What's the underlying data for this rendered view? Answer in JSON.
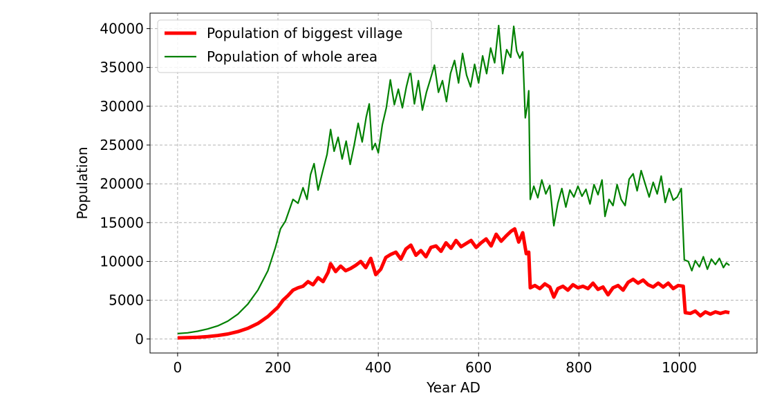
{
  "chart_data": {
    "type": "line",
    "xlabel": "Year AD",
    "ylabel": "Population",
    "xlim": [
      -55,
      1155
    ],
    "ylim": [
      -1800,
      42000
    ],
    "xticks": [
      0,
      200,
      400,
      600,
      800,
      1000
    ],
    "yticks": [
      0,
      5000,
      10000,
      15000,
      20000,
      25000,
      30000,
      35000,
      40000
    ],
    "grid": true,
    "legend": "top-left",
    "series": [
      {
        "name": "Population of biggest village",
        "color": "#ff0000",
        "points": [
          [
            0,
            150
          ],
          [
            20,
            180
          ],
          [
            40,
            230
          ],
          [
            60,
            320
          ],
          [
            80,
            450
          ],
          [
            100,
            650
          ],
          [
            120,
            950
          ],
          [
            140,
            1380
          ],
          [
            160,
            2000
          ],
          [
            180,
            2900
          ],
          [
            200,
            4100
          ],
          [
            210,
            5000
          ],
          [
            220,
            5600
          ],
          [
            230,
            6300
          ],
          [
            240,
            6600
          ],
          [
            250,
            6800
          ],
          [
            260,
            7400
          ],
          [
            270,
            7000
          ],
          [
            280,
            7900
          ],
          [
            290,
            7400
          ],
          [
            300,
            8600
          ],
          [
            305,
            9700
          ],
          [
            315,
            8700
          ],
          [
            325,
            9400
          ],
          [
            335,
            8800
          ],
          [
            345,
            9100
          ],
          [
            355,
            9500
          ],
          [
            365,
            10000
          ],
          [
            375,
            9200
          ],
          [
            385,
            10400
          ],
          [
            395,
            8300
          ],
          [
            405,
            9000
          ],
          [
            415,
            10500
          ],
          [
            425,
            10900
          ],
          [
            435,
            11200
          ],
          [
            445,
            10300
          ],
          [
            455,
            11600
          ],
          [
            465,
            12100
          ],
          [
            475,
            10800
          ],
          [
            485,
            11400
          ],
          [
            495,
            10600
          ],
          [
            505,
            11800
          ],
          [
            515,
            12000
          ],
          [
            525,
            11300
          ],
          [
            535,
            12400
          ],
          [
            545,
            11700
          ],
          [
            555,
            12700
          ],
          [
            565,
            11900
          ],
          [
            575,
            12300
          ],
          [
            585,
            12700
          ],
          [
            595,
            11800
          ],
          [
            605,
            12400
          ],
          [
            615,
            12900
          ],
          [
            625,
            12000
          ],
          [
            635,
            13500
          ],
          [
            645,
            12600
          ],
          [
            655,
            13300
          ],
          [
            665,
            13900
          ],
          [
            672,
            14200
          ],
          [
            680,
            12500
          ],
          [
            688,
            13700
          ],
          [
            695,
            11000
          ],
          [
            700,
            11200
          ],
          [
            703,
            6600
          ],
          [
            712,
            6900
          ],
          [
            722,
            6500
          ],
          [
            732,
            7100
          ],
          [
            742,
            6700
          ],
          [
            750,
            5400
          ],
          [
            758,
            6500
          ],
          [
            768,
            6800
          ],
          [
            778,
            6300
          ],
          [
            788,
            7000
          ],
          [
            798,
            6600
          ],
          [
            808,
            6800
          ],
          [
            818,
            6500
          ],
          [
            828,
            7200
          ],
          [
            838,
            6400
          ],
          [
            848,
            6700
          ],
          [
            858,
            5700
          ],
          [
            868,
            6600
          ],
          [
            878,
            6900
          ],
          [
            888,
            6300
          ],
          [
            898,
            7300
          ],
          [
            908,
            7700
          ],
          [
            918,
            7200
          ],
          [
            928,
            7600
          ],
          [
            938,
            7000
          ],
          [
            948,
            6700
          ],
          [
            958,
            7200
          ],
          [
            968,
            6700
          ],
          [
            978,
            7200
          ],
          [
            988,
            6500
          ],
          [
            998,
            6900
          ],
          [
            1008,
            6800
          ],
          [
            1012,
            3400
          ],
          [
            1022,
            3300
          ],
          [
            1032,
            3600
          ],
          [
            1042,
            3000
          ],
          [
            1052,
            3500
          ],
          [
            1062,
            3200
          ],
          [
            1072,
            3500
          ],
          [
            1082,
            3300
          ],
          [
            1092,
            3500
          ],
          [
            1100,
            3400
          ]
        ]
      },
      {
        "name": "Population of whole area",
        "color": "#008000",
        "points": [
          [
            0,
            700
          ],
          [
            20,
            800
          ],
          [
            40,
            1000
          ],
          [
            60,
            1300
          ],
          [
            80,
            1700
          ],
          [
            100,
            2300
          ],
          [
            120,
            3200
          ],
          [
            140,
            4500
          ],
          [
            160,
            6300
          ],
          [
            180,
            8800
          ],
          [
            195,
            11800
          ],
          [
            205,
            14200
          ],
          [
            215,
            15200
          ],
          [
            222,
            16500
          ],
          [
            230,
            18000
          ],
          [
            240,
            17500
          ],
          [
            250,
            19500
          ],
          [
            258,
            18000
          ],
          [
            265,
            21200
          ],
          [
            272,
            22600
          ],
          [
            280,
            19200
          ],
          [
            290,
            21800
          ],
          [
            298,
            23800
          ],
          [
            305,
            27000
          ],
          [
            312,
            24200
          ],
          [
            320,
            26000
          ],
          [
            328,
            23200
          ],
          [
            336,
            25500
          ],
          [
            344,
            22500
          ],
          [
            352,
            25000
          ],
          [
            360,
            27800
          ],
          [
            368,
            25400
          ],
          [
            376,
            28600
          ],
          [
            382,
            30300
          ],
          [
            388,
            24400
          ],
          [
            394,
            25200
          ],
          [
            400,
            24000
          ],
          [
            408,
            27600
          ],
          [
            416,
            29800
          ],
          [
            424,
            33400
          ],
          [
            432,
            30200
          ],
          [
            440,
            32200
          ],
          [
            448,
            29800
          ],
          [
            456,
            32500
          ],
          [
            464,
            34600
          ],
          [
            472,
            30300
          ],
          [
            480,
            33300
          ],
          [
            488,
            29500
          ],
          [
            496,
            31800
          ],
          [
            504,
            33500
          ],
          [
            512,
            35300
          ],
          [
            520,
            31800
          ],
          [
            528,
            33300
          ],
          [
            536,
            30600
          ],
          [
            544,
            34200
          ],
          [
            552,
            35900
          ],
          [
            560,
            33000
          ],
          [
            568,
            36800
          ],
          [
            576,
            34000
          ],
          [
            584,
            32500
          ],
          [
            592,
            35400
          ],
          [
            600,
            33000
          ],
          [
            608,
            36500
          ],
          [
            616,
            34200
          ],
          [
            624,
            37500
          ],
          [
            632,
            35600
          ],
          [
            640,
            40400
          ],
          [
            648,
            34200
          ],
          [
            656,
            37300
          ],
          [
            664,
            36300
          ],
          [
            670,
            40300
          ],
          [
            676,
            37100
          ],
          [
            682,
            36200
          ],
          [
            688,
            37000
          ],
          [
            693,
            28500
          ],
          [
            697,
            30000
          ],
          [
            700,
            32000
          ],
          [
            703,
            18000
          ],
          [
            710,
            19700
          ],
          [
            718,
            18200
          ],
          [
            726,
            20500
          ],
          [
            734,
            18700
          ],
          [
            742,
            19800
          ],
          [
            750,
            14600
          ],
          [
            758,
            17500
          ],
          [
            766,
            19400
          ],
          [
            774,
            17000
          ],
          [
            782,
            19200
          ],
          [
            790,
            18300
          ],
          [
            798,
            19700
          ],
          [
            806,
            18400
          ],
          [
            814,
            19300
          ],
          [
            822,
            17400
          ],
          [
            830,
            19900
          ],
          [
            838,
            18600
          ],
          [
            846,
            20500
          ],
          [
            852,
            15800
          ],
          [
            860,
            18000
          ],
          [
            868,
            17200
          ],
          [
            876,
            19900
          ],
          [
            884,
            18000
          ],
          [
            892,
            17200
          ],
          [
            900,
            20600
          ],
          [
            908,
            21300
          ],
          [
            916,
            19100
          ],
          [
            924,
            21700
          ],
          [
            932,
            20000
          ],
          [
            940,
            18300
          ],
          [
            948,
            20200
          ],
          [
            956,
            18700
          ],
          [
            964,
            21000
          ],
          [
            972,
            17600
          ],
          [
            980,
            19400
          ],
          [
            988,
            17900
          ],
          [
            996,
            18300
          ],
          [
            1004,
            19400
          ],
          [
            1010,
            10200
          ],
          [
            1018,
            10000
          ],
          [
            1025,
            8800
          ],
          [
            1032,
            10100
          ],
          [
            1040,
            9300
          ],
          [
            1048,
            10600
          ],
          [
            1056,
            9000
          ],
          [
            1064,
            10300
          ],
          [
            1072,
            9600
          ],
          [
            1080,
            10400
          ],
          [
            1088,
            9200
          ],
          [
            1094,
            9800
          ],
          [
            1100,
            9500
          ]
        ]
      }
    ]
  }
}
